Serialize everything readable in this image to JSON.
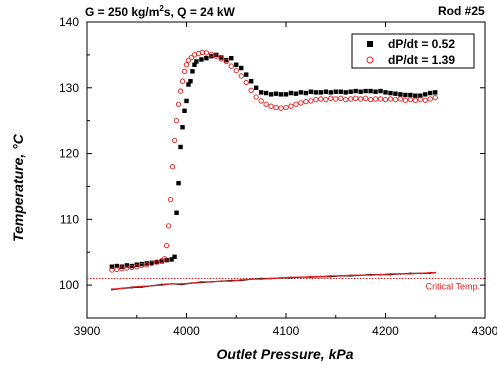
{
  "header": {
    "title_left_prefix": "G = 250 kg/m",
    "title_left_sup": "2",
    "title_left_suffix": "s, Q = 24 kW",
    "title_right": "Rod #25"
  },
  "chart_data": {
    "type": "scatter",
    "xlabel": "Outlet Pressure, kPa",
    "ylabel": "Temperature, °C",
    "xlim": [
      3900,
      4300
    ],
    "ylim": [
      95,
      140
    ],
    "xticks": [
      3900,
      4000,
      4100,
      4200,
      4300
    ],
    "yticks": [
      100,
      110,
      120,
      130,
      140
    ],
    "grid": false,
    "legend_position": "top-right",
    "annotation": {
      "text": "Critical Temp.",
      "value": 101,
      "color": "#e02020"
    },
    "series": [
      {
        "name": "dP/dt = 0.52",
        "marker": "filled-square",
        "color": "#000000",
        "points": [
          [
            3925,
            102.8
          ],
          [
            3930,
            102.9
          ],
          [
            3935,
            102.8
          ],
          [
            3940,
            103.0
          ],
          [
            3945,
            102.9
          ],
          [
            3950,
            103.1
          ],
          [
            3955,
            103.2
          ],
          [
            3960,
            103.3
          ],
          [
            3965,
            103.4
          ],
          [
            3970,
            103.5
          ],
          [
            3975,
            103.6
          ],
          [
            3980,
            103.8
          ],
          [
            3985,
            103.9
          ],
          [
            3988,
            104.3
          ],
          [
            3990,
            111.0
          ],
          [
            3992,
            115.5
          ],
          [
            3994,
            121.0
          ],
          [
            3996,
            124.0
          ],
          [
            3998,
            126.5
          ],
          [
            4000,
            128.0
          ],
          [
            4002,
            130.5
          ],
          [
            4004,
            131.0
          ],
          [
            4006,
            132.5
          ],
          [
            4008,
            133.5
          ],
          [
            4010,
            134.0
          ],
          [
            4015,
            134.3
          ],
          [
            4020,
            134.5
          ],
          [
            4025,
            134.8
          ],
          [
            4030,
            135.0
          ],
          [
            4035,
            134.6
          ],
          [
            4040,
            134.2
          ],
          [
            4045,
            134.5
          ],
          [
            4050,
            133.5
          ],
          [
            4055,
            133.0
          ],
          [
            4060,
            132.0
          ],
          [
            4065,
            131.0
          ],
          [
            4070,
            130.0
          ],
          [
            4075,
            129.3
          ],
          [
            4080,
            129.2
          ],
          [
            4085,
            129.0
          ],
          [
            4090,
            129.1
          ],
          [
            4095,
            129.0
          ],
          [
            4100,
            129.0
          ],
          [
            4105,
            129.2
          ],
          [
            4110,
            129.1
          ],
          [
            4115,
            129.3
          ],
          [
            4120,
            129.2
          ],
          [
            4125,
            129.4
          ],
          [
            4130,
            129.3
          ],
          [
            4135,
            129.3
          ],
          [
            4140,
            129.4
          ],
          [
            4145,
            129.3
          ],
          [
            4150,
            129.4
          ],
          [
            4155,
            129.4
          ],
          [
            4160,
            129.3
          ],
          [
            4165,
            129.4
          ],
          [
            4170,
            129.5
          ],
          [
            4175,
            129.4
          ],
          [
            4180,
            129.5
          ],
          [
            4185,
            129.5
          ],
          [
            4190,
            129.4
          ],
          [
            4195,
            129.5
          ],
          [
            4200,
            129.3
          ],
          [
            4205,
            129.2
          ],
          [
            4210,
            129.1
          ],
          [
            4215,
            129.0
          ],
          [
            4220,
            128.9
          ],
          [
            4225,
            128.9
          ],
          [
            4230,
            128.8
          ],
          [
            4235,
            128.8
          ],
          [
            4240,
            129.0
          ],
          [
            4245,
            129.2
          ],
          [
            4250,
            129.3
          ]
        ]
      },
      {
        "name": "dP/dt = 1.39",
        "marker": "open-circle",
        "color": "#e02020",
        "points": [
          [
            3925,
            102.3
          ],
          [
            3930,
            102.4
          ],
          [
            3935,
            102.5
          ],
          [
            3940,
            102.6
          ],
          [
            3945,
            102.7
          ],
          [
            3950,
            102.8
          ],
          [
            3955,
            103.0
          ],
          [
            3960,
            103.1
          ],
          [
            3965,
            103.3
          ],
          [
            3970,
            103.5
          ],
          [
            3975,
            103.7
          ],
          [
            3978,
            104.0
          ],
          [
            3980,
            106.0
          ],
          [
            3982,
            109.0
          ],
          [
            3984,
            113.0
          ],
          [
            3986,
            118.0
          ],
          [
            3988,
            122.0
          ],
          [
            3990,
            125.0
          ],
          [
            3992,
            127.5
          ],
          [
            3994,
            129.5
          ],
          [
            3996,
            131.0
          ],
          [
            3998,
            132.5
          ],
          [
            4000,
            133.5
          ],
          [
            4002,
            134.2
          ],
          [
            4005,
            134.6
          ],
          [
            4008,
            135.0
          ],
          [
            4012,
            135.2
          ],
          [
            4016,
            135.4
          ],
          [
            4020,
            135.3
          ],
          [
            4025,
            135.1
          ],
          [
            4030,
            134.8
          ],
          [
            4035,
            134.4
          ],
          [
            4040,
            134.0
          ],
          [
            4045,
            133.3
          ],
          [
            4050,
            132.6
          ],
          [
            4055,
            131.8
          ],
          [
            4060,
            130.8
          ],
          [
            4065,
            129.6
          ],
          [
            4070,
            128.6
          ],
          [
            4075,
            128.0
          ],
          [
            4080,
            127.5
          ],
          [
            4085,
            127.2
          ],
          [
            4090,
            127.0
          ],
          [
            4095,
            126.9
          ],
          [
            4100,
            127.0
          ],
          [
            4105,
            127.2
          ],
          [
            4110,
            127.5
          ],
          [
            4115,
            127.7
          ],
          [
            4120,
            127.9
          ],
          [
            4125,
            128.0
          ],
          [
            4130,
            128.2
          ],
          [
            4135,
            128.3
          ],
          [
            4140,
            128.2
          ],
          [
            4145,
            128.4
          ],
          [
            4150,
            128.3
          ],
          [
            4155,
            128.4
          ],
          [
            4160,
            128.2
          ],
          [
            4165,
            128.3
          ],
          [
            4170,
            128.4
          ],
          [
            4175,
            128.3
          ],
          [
            4180,
            128.4
          ],
          [
            4185,
            128.2
          ],
          [
            4190,
            128.3
          ],
          [
            4195,
            128.3
          ],
          [
            4200,
            128.2
          ],
          [
            4205,
            128.3
          ],
          [
            4210,
            128.2
          ],
          [
            4215,
            128.3
          ],
          [
            4220,
            128.1
          ],
          [
            4225,
            128.2
          ],
          [
            4230,
            128.1
          ],
          [
            4235,
            128.2
          ],
          [
            4240,
            128.1
          ],
          [
            4245,
            128.3
          ],
          [
            4250,
            128.5
          ]
        ]
      },
      {
        "name": "",
        "marker": "line-dark",
        "color": "#111111",
        "points": [
          [
            3925,
            99.3
          ],
          [
            3935,
            99.5
          ],
          [
            3945,
            99.6
          ],
          [
            3955,
            99.7
          ],
          [
            3965,
            99.9
          ],
          [
            3975,
            100.1
          ],
          [
            3985,
            100.2
          ],
          [
            3995,
            100.1
          ],
          [
            4005,
            100.3
          ],
          [
            4015,
            100.4
          ],
          [
            4025,
            100.5
          ],
          [
            4035,
            100.6
          ],
          [
            4045,
            100.7
          ],
          [
            4055,
            100.7
          ],
          [
            4065,
            100.9
          ],
          [
            4075,
            101.0
          ],
          [
            4085,
            101.0
          ],
          [
            4095,
            101.1
          ],
          [
            4105,
            101.1
          ],
          [
            4115,
            101.2
          ],
          [
            4125,
            101.2
          ],
          [
            4135,
            101.3
          ],
          [
            4145,
            101.3
          ],
          [
            4155,
            101.4
          ],
          [
            4165,
            101.4
          ],
          [
            4175,
            101.5
          ],
          [
            4185,
            101.6
          ],
          [
            4195,
            101.6
          ],
          [
            4205,
            101.6
          ],
          [
            4215,
            101.7
          ],
          [
            4225,
            101.8
          ],
          [
            4235,
            101.8
          ],
          [
            4245,
            101.8
          ],
          [
            4250,
            101.9
          ]
        ]
      },
      {
        "name": "",
        "marker": "line-red",
        "color": "#e02020",
        "points": [
          [
            3925,
            99.4
          ],
          [
            3935,
            99.5
          ],
          [
            3945,
            99.7
          ],
          [
            3955,
            99.8
          ],
          [
            3965,
            99.9
          ],
          [
            3975,
            100.0
          ],
          [
            3985,
            100.2
          ],
          [
            3995,
            100.2
          ],
          [
            4005,
            100.3
          ],
          [
            4015,
            100.5
          ],
          [
            4025,
            100.5
          ],
          [
            4035,
            100.6
          ],
          [
            4045,
            100.6
          ],
          [
            4055,
            100.8
          ],
          [
            4065,
            100.9
          ],
          [
            4075,
            100.9
          ],
          [
            4085,
            101.0
          ],
          [
            4095,
            101.1
          ],
          [
            4105,
            101.2
          ],
          [
            4115,
            101.2
          ],
          [
            4125,
            101.3
          ],
          [
            4135,
            101.3
          ],
          [
            4145,
            101.4
          ],
          [
            4155,
            101.4
          ],
          [
            4165,
            101.5
          ],
          [
            4175,
            101.5
          ],
          [
            4185,
            101.5
          ],
          [
            4195,
            101.6
          ],
          [
            4205,
            101.7
          ],
          [
            4215,
            101.7
          ],
          [
            4225,
            101.7
          ],
          [
            4235,
            101.8
          ],
          [
            4245,
            101.9
          ],
          [
            4250,
            101.9
          ]
        ]
      }
    ]
  }
}
